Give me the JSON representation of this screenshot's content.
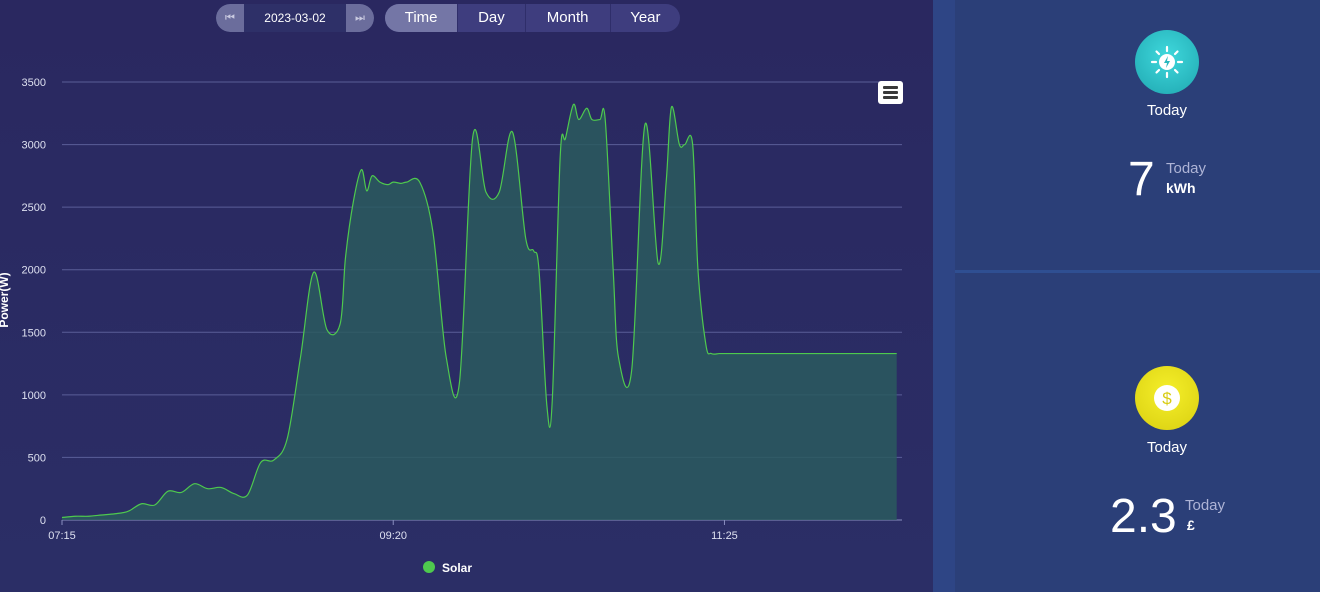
{
  "date_nav": {
    "date": "2023-03-02",
    "prev_icon": "step-backward-icon",
    "next_icon": "step-forward-icon"
  },
  "tabs": [
    {
      "label": "Time",
      "active": true
    },
    {
      "label": "Day",
      "active": false
    },
    {
      "label": "Month",
      "active": false
    },
    {
      "label": "Year",
      "active": false
    }
  ],
  "menu_icon": "hamburger-menu-icon",
  "colors": {
    "series": "#4ec94e",
    "area": "#2a5a5e",
    "accent_energy": "#2cc3c9",
    "accent_money": "#e6e01a"
  },
  "energy_card": {
    "icon": "sun-bolt-icon",
    "label": "Today",
    "value": "7",
    "unit_top": "Today",
    "unit_bottom": "kWh"
  },
  "money_card": {
    "icon": "dollar-coin-icon",
    "label": "Today",
    "value": "2.3",
    "unit_top": "Today",
    "unit_bottom": "£"
  },
  "chart_data": {
    "type": "area",
    "title": "",
    "xlabel": "",
    "ylabel": "Power(W)",
    "ylim": [
      0,
      3500
    ],
    "yticks": [
      0,
      500,
      1000,
      1500,
      2000,
      2500,
      3000,
      3500
    ],
    "xticks": [
      "07:15",
      "09:20",
      "11:25"
    ],
    "grid": true,
    "legend_position": "bottom",
    "series": [
      {
        "name": "Solar",
        "x": [
          "07:15",
          "07:20",
          "07:25",
          "07:30",
          "07:35",
          "07:40",
          "07:45",
          "07:50",
          "07:55",
          "08:00",
          "08:05",
          "08:10",
          "08:15",
          "08:20",
          "08:25",
          "08:30",
          "08:35",
          "08:40",
          "08:45",
          "08:50",
          "08:55",
          "09:00",
          "09:02",
          "09:05",
          "09:08",
          "09:10",
          "09:12",
          "09:15",
          "09:18",
          "09:20",
          "09:23",
          "09:25",
          "09:30",
          "09:35",
          "09:40",
          "09:45",
          "09:50",
          "09:55",
          "10:00",
          "10:05",
          "10:10",
          "10:13",
          "10:15",
          "10:18",
          "10:20",
          "10:23",
          "10:25",
          "10:28",
          "10:30",
          "10:33",
          "10:35",
          "10:38",
          "10:40",
          "10:43",
          "10:45",
          "10:50",
          "10:55",
          "11:00",
          "11:03",
          "11:05",
          "11:08",
          "11:10",
          "11:13",
          "11:15",
          "11:18",
          "11:20",
          "11:23",
          "11:25",
          "11:30",
          "11:35",
          "11:40",
          "11:45",
          "11:50",
          "11:52",
          "11:55",
          "11:57",
          "12:00",
          "12:02",
          "12:05",
          "12:08",
          "12:10",
          "12:13",
          "12:15",
          "12:20",
          "12:25",
          "12:30"
        ],
        "values": [
          20,
          30,
          30,
          40,
          50,
          70,
          130,
          120,
          230,
          220,
          290,
          250,
          260,
          210,
          200,
          460,
          480,
          650,
          1300,
          1980,
          1520,
          1570,
          2100,
          2550,
          2800,
          2630,
          2750,
          2700,
          2680,
          2700,
          2690,
          2700,
          2700,
          2300,
          1300,
          1100,
          3060,
          2620,
          2620,
          3100,
          2250,
          2150,
          2000,
          910,
          950,
          2900,
          3050,
          3320,
          3200,
          3290,
          3200,
          3200,
          3200,
          2000,
          1300,
          1200,
          3160,
          2050,
          2700,
          3300,
          3000,
          3000,
          3000,
          2000,
          1400,
          1330,
          1330,
          1330,
          1330,
          1330,
          1330,
          1330,
          1330,
          1330,
          1330,
          1330,
          1330,
          1330,
          1330,
          1330,
          1330,
          1330,
          1330,
          1330,
          1330,
          1330
        ]
      }
    ]
  }
}
